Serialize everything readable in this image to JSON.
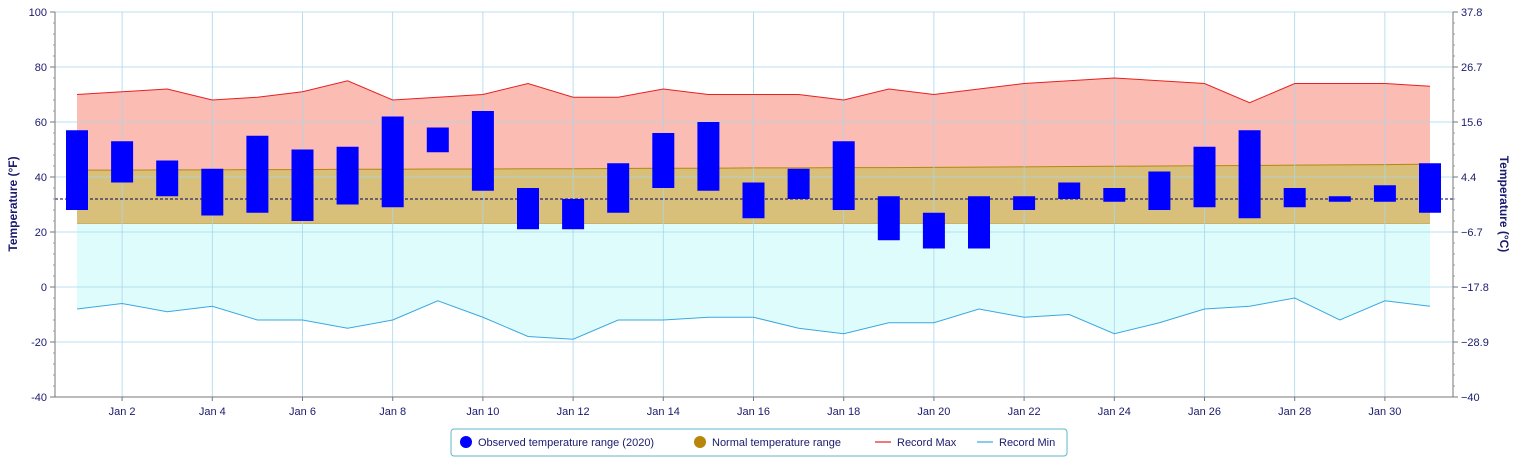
{
  "chart_data": {
    "type": "bar",
    "x": {
      "days": [
        1,
        2,
        3,
        4,
        5,
        6,
        7,
        8,
        9,
        10,
        11,
        12,
        13,
        14,
        15,
        16,
        17,
        18,
        19,
        20,
        21,
        22,
        23,
        24,
        25,
        26,
        27,
        28,
        29,
        30,
        31
      ],
      "tick_days": [
        2,
        4,
        6,
        8,
        10,
        12,
        14,
        16,
        18,
        20,
        22,
        24,
        26,
        28,
        30
      ],
      "tick_labels": [
        "Jan 2",
        "Jan 4",
        "Jan 6",
        "Jan 8",
        "Jan 10",
        "Jan 12",
        "Jan 14",
        "Jan 16",
        "Jan 18",
        "Jan 20",
        "Jan 22",
        "Jan 24",
        "Jan 26",
        "Jan 28",
        "Jan 30"
      ]
    },
    "y_left": {
      "label": "Temperature (°F)",
      "ylim": [
        -40,
        100
      ],
      "ticks": [
        -40,
        -20,
        0,
        20,
        40,
        60,
        80,
        100
      ]
    },
    "y_right": {
      "label": "Temperature (°C)",
      "tick_labels": [
        "−40",
        "−28.9",
        "−17.8",
        "−6.7",
        "4.4",
        "15.6",
        "26.7",
        "37.8"
      ]
    },
    "freezing_line_f": 32,
    "grid": true,
    "series": [
      {
        "name": "Observed temperature range (2020)",
        "kind": "range-bar",
        "color": "#0000ff",
        "low": [
          28,
          38,
          33,
          26,
          27,
          24,
          30,
          29,
          49,
          35,
          21,
          21,
          27,
          36,
          35,
          25,
          32,
          28,
          17,
          14,
          14,
          28,
          32,
          31,
          28,
          29,
          25,
          29,
          31,
          31,
          27
        ],
        "high": [
          57,
          53,
          46,
          43,
          55,
          50,
          51,
          62,
          58,
          64,
          36,
          32,
          45,
          56,
          60,
          38,
          43,
          53,
          33,
          27,
          33,
          33,
          38,
          36,
          42,
          51,
          57,
          36,
          33,
          37,
          45
        ]
      },
      {
        "name": "Normal temperature range",
        "kind": "area-range",
        "color": "#d8c07a",
        "low": [
          23,
          23,
          23,
          23,
          23,
          23,
          23,
          23,
          23,
          23,
          23,
          23,
          23,
          23,
          23,
          23,
          23,
          23,
          23,
          23,
          23,
          23,
          23,
          23,
          23,
          23,
          23,
          23,
          23,
          23,
          23
        ],
        "high": [
          42.5,
          42.5,
          42.6,
          42.6,
          42.7,
          42.7,
          42.8,
          42.8,
          42.9,
          42.9,
          43.0,
          43.0,
          43.1,
          43.2,
          43.2,
          43.3,
          43.3,
          43.4,
          43.4,
          43.5,
          43.6,
          43.7,
          43.8,
          43.9,
          44.0,
          44.1,
          44.2,
          44.3,
          44.4,
          44.5,
          44.7
        ]
      },
      {
        "name": "Record Max",
        "kind": "line",
        "color": "#e82020",
        "values": [
          70,
          71,
          72,
          68,
          69,
          71,
          75,
          68,
          69,
          70,
          74,
          69,
          69,
          72,
          70,
          70,
          70,
          68,
          72,
          70,
          72,
          74,
          75,
          76,
          75,
          74,
          67,
          74,
          74,
          74,
          73
        ]
      },
      {
        "name": "Record Min",
        "kind": "line",
        "color": "#3aa8e0",
        "values": [
          -8,
          -6,
          -9,
          -7,
          -12,
          -12,
          -15,
          -12,
          -5,
          -11,
          -18,
          -19,
          -12,
          -12,
          -11,
          -11,
          -15,
          -17,
          -13,
          -13,
          -8,
          -11,
          -10,
          -17,
          -13,
          -8,
          -7,
          -4,
          -12,
          -5,
          -7
        ]
      }
    ],
    "legend": {
      "placement": "bottom-center",
      "items": [
        "Observed temperature range (2020)",
        "Normal temperature range",
        "Record Max",
        "Record Min"
      ]
    }
  },
  "colors": {
    "record_max_fill": "#fbbcb4",
    "record_min_fill": "#dffcfc",
    "grid": "#a9d6ea",
    "axis_text": "#1a1a6e",
    "axis_line": "#777777"
  }
}
